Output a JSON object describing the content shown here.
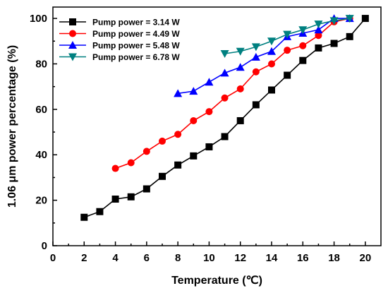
{
  "chart_data": {
    "type": "line",
    "xlabel": "Temperature (℃)",
    "ylabel": "1.06 μm power percentage (%)",
    "xlim": [
      0,
      21
    ],
    "ylim": [
      0,
      105
    ],
    "xticks": [
      0,
      2,
      4,
      6,
      8,
      10,
      12,
      14,
      16,
      18,
      20
    ],
    "yticks": [
      0,
      20,
      40,
      60,
      80,
      100
    ],
    "grid": false,
    "legend_position": "top-left",
    "series": [
      {
        "name": "Pump power = 3.14 W",
        "color": "#000000",
        "marker": "square",
        "x": [
          2,
          3,
          4,
          5,
          6,
          7,
          8,
          9,
          10,
          11,
          12,
          13,
          14,
          15,
          16,
          17,
          18,
          19,
          20
        ],
        "y": [
          12.5,
          15,
          20.5,
          21.5,
          25,
          30.5,
          35.5,
          39.5,
          43.5,
          48,
          55,
          62,
          68.5,
          75,
          81.5,
          87,
          89,
          92,
          100
        ]
      },
      {
        "name": "Pump power = 4.49 W",
        "color": "#ff0000",
        "marker": "circle",
        "x": [
          4,
          5,
          6,
          7,
          8,
          9,
          10,
          11,
          12,
          13,
          14,
          15,
          16,
          17,
          18,
          19
        ],
        "y": [
          34,
          36.5,
          41.5,
          46,
          49,
          55,
          59,
          65,
          69,
          76.5,
          80,
          86,
          88,
          92.5,
          98.5,
          100
        ]
      },
      {
        "name": "Pump power = 5.48 W",
        "color": "#0000ff",
        "marker": "triangle-up",
        "x": [
          8,
          9,
          10,
          11,
          12,
          13,
          14,
          15,
          16,
          17,
          18,
          19
        ],
        "y": [
          67,
          68,
          72,
          76,
          78.5,
          83,
          85.5,
          92,
          93.5,
          95,
          100,
          100
        ]
      },
      {
        "name": "Pump power = 6.78 W",
        "color": "#008080",
        "marker": "triangle-down",
        "x": [
          11,
          12,
          13,
          14,
          15,
          16,
          17,
          18,
          19
        ],
        "y": [
          84.5,
          85.5,
          87.5,
          90,
          93,
          95,
          97.5,
          99,
          100
        ]
      }
    ]
  }
}
